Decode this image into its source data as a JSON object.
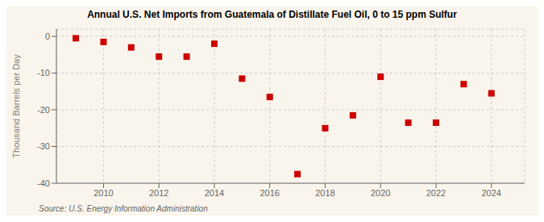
{
  "chart_data": {
    "type": "scatter",
    "title": "Annual U.S. Net Imports from Guatemala of Distillate Fuel Oil, 0 to 15 ppm Sulfur",
    "ylabel": "Thousand Barrels per Day",
    "annotations": [
      "Source: U.S. Energy Information Administration"
    ],
    "x": [
      2009,
      2010,
      2011,
      2012,
      2013,
      2014,
      2015,
      2016,
      2017,
      2018,
      2019,
      2020,
      2021,
      2022,
      2023,
      2024
    ],
    "values": [
      -0.5,
      -1.5,
      -3.0,
      -5.5,
      -5.5,
      -2.0,
      -11.5,
      -16.5,
      -37.5,
      -25.0,
      -21.5,
      -11.0,
      -23.5,
      -23.5,
      -13.0,
      -15.5
    ],
    "color": "#cc0000",
    "marker": "square",
    "xlim": [
      2008.3,
      2025.2
    ],
    "ylim": [
      -40,
      2
    ],
    "xticks": [
      2010,
      2012,
      2014,
      2016,
      2018,
      2020,
      2022,
      2024
    ],
    "yticks": [
      0,
      -10,
      -20,
      -30,
      -40
    ],
    "grid": true
  }
}
